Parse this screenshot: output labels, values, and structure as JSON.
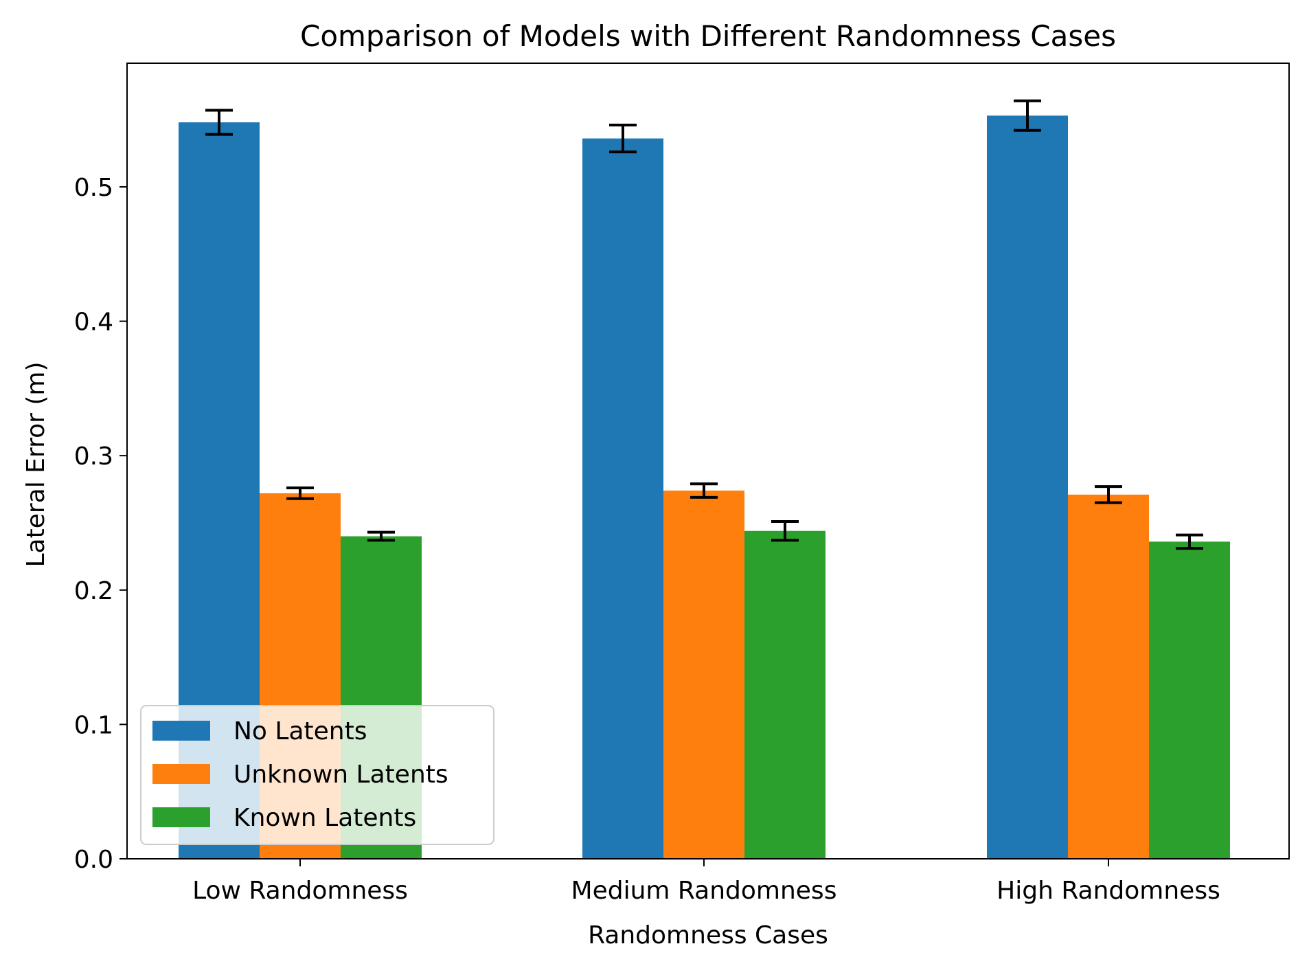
{
  "chart_data": {
    "type": "bar",
    "title": "Comparison of Models with Different Randomness Cases",
    "xlabel": "Randomness Cases",
    "ylabel": "Lateral Error (m)",
    "categories": [
      "Low Randomness",
      "Medium Randomness",
      "High Randomness"
    ],
    "ylim": [
      0.0,
      0.592
    ],
    "yticks": [
      0.0,
      0.1,
      0.2,
      0.3,
      0.4,
      0.5
    ],
    "ytick_labels": [
      "0.0",
      "0.1",
      "0.2",
      "0.3",
      "0.4",
      "0.5"
    ],
    "grid": false,
    "legend_position": "lower left",
    "series": [
      {
        "name": "No Latents",
        "color": "#1f77b4",
        "values": [
          0.548,
          0.536,
          0.553
        ],
        "errors": [
          0.009,
          0.01,
          0.011
        ]
      },
      {
        "name": "Unknown Latents",
        "color": "#ff7f0e",
        "values": [
          0.272,
          0.274,
          0.271
        ],
        "errors": [
          0.004,
          0.005,
          0.006
        ]
      },
      {
        "name": "Known Latents",
        "color": "#2ca02c",
        "values": [
          0.24,
          0.244,
          0.236
        ],
        "errors": [
          0.003,
          0.007,
          0.005
        ]
      }
    ]
  }
}
